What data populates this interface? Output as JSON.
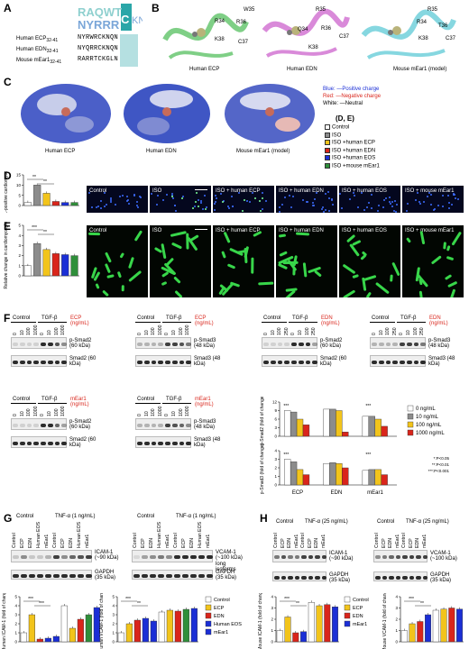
{
  "panels": {
    "A": "A",
    "B": "B",
    "C": "C",
    "D": "D",
    "E": "E",
    "F": "F",
    "G": "G",
    "H": "H",
    "DE": "(D, E)"
  },
  "seq": {
    "ecp": {
      "label": "Human ECP",
      "sub": "32-41",
      "seq": "NYRWRCKNQN"
    },
    "edn": {
      "label": "Human EDN",
      "sub": "32-41",
      "seq": "NYQRRCKNQN"
    },
    "mear": {
      "label": "Mouse mEar1",
      "sub": "32-41",
      "seq": "RARRTCKGLN"
    }
  },
  "B": {
    "ecp": {
      "label": "Human ECP",
      "residues": [
        "W35",
        "R34",
        "R36",
        "K38",
        "C37"
      ]
    },
    "edn": {
      "label": "Human EDN",
      "residues": [
        "R35",
        "Q34",
        "R36",
        "K38",
        "C37"
      ]
    },
    "mear": {
      "label": "Mouse mEar1 (model)",
      "residues": [
        "R35",
        "R34",
        "T36",
        "K38",
        "C37"
      ]
    }
  },
  "C": {
    "ecp": "Human ECP",
    "edn": "Human EDN",
    "mear": "Mouse mEar1 (model)",
    "legend": [
      {
        "k": "Blue:",
        "v": "—Positive charge",
        "color": "#1b2fd6"
      },
      {
        "k": "Red:",
        "v": "—Negative charge",
        "color": "#d9251b"
      },
      {
        "k": "White:",
        "v": "—Neutral",
        "color": "#000000"
      }
    ]
  },
  "DE_legend": [
    {
      "name": "Control",
      "color": "#ffffff"
    },
    {
      "name": "ISO",
      "color": "#8c8c8c"
    },
    {
      "name": "ISO +human ECP",
      "color": "#f2c41b"
    },
    {
      "name": "ISO +human EDN",
      "color": "#d9251b"
    },
    {
      "name": "ISO +human EOS",
      "color": "#1b2fd6"
    },
    {
      "name": "ISO +mouse mEar1",
      "color": "#2f8f3a"
    }
  ],
  "D": {
    "ylabel": "TUNEL-positive cardiomyocytes (%)",
    "ticks": [
      "0",
      "5",
      "10",
      "15"
    ],
    "sig": [
      "**",
      "**"
    ],
    "images": [
      "Control",
      "ISO",
      "ISO + human ECP",
      "ISO + human EDN",
      "ISO + human EOS",
      "ISO + mouse mEar1"
    ]
  },
  "E": {
    "ylabel": "Relative change in cardiomyocyte size",
    "ticks": [
      "0",
      "1",
      "2",
      "3",
      "4",
      "5"
    ],
    "sig": [
      "***",
      "**"
    ],
    "images": [
      "Control",
      "ISO",
      "ISO + human ECP",
      "ISO + human EDN",
      "ISO + human EOS",
      "ISO + mouse mEar1"
    ]
  },
  "chart_data": [
    {
      "type": "bar",
      "categories": [
        "Control",
        "ISO",
        "ISO +human ECP",
        "ISO +human EDN",
        "ISO +human EOS",
        "ISO +mouse mEar1"
      ],
      "values": [
        1.5,
        10,
        6,
        2,
        1.5,
        1.5
      ],
      "ylabel": "TUNEL-positive cardiomyocytes (%)",
      "ylim": [
        0,
        15
      ]
    },
    {
      "type": "bar",
      "categories": [
        "Control",
        "ISO",
        "ISO +human ECP",
        "ISO +human EDN",
        "ISO +human EOS",
        "ISO +mouse mEar1"
      ],
      "values": [
        1,
        3.2,
        2.6,
        2.2,
        2.1,
        2.0
      ],
      "ylabel": "Relative change in cardiomyocyte size",
      "ylim": [
        0,
        5
      ]
    },
    {
      "type": "bar",
      "categories": [
        "ECP",
        "EDN",
        "mEar1"
      ],
      "series": [
        {
          "name": "0 ng/mL",
          "values": [
            9,
            9.5,
            7
          ]
        },
        {
          "name": "10 ng/mL",
          "values": [
            8.5,
            9.5,
            7
          ]
        },
        {
          "name": "100 ng/mL",
          "values": [
            6,
            9,
            6
          ]
        },
        {
          "name": "1000 ng/mL",
          "values": [
            4,
            1.5,
            3.5
          ]
        }
      ],
      "ylabel": "p-Smad2 (fold of change)",
      "ylim": [
        0,
        12
      ],
      "ticks": [
        "0",
        "3",
        "6",
        "9",
        "12"
      ]
    },
    {
      "type": "bar",
      "categories": [
        "ECP",
        "EDN",
        "mEar1"
      ],
      "series": [
        {
          "name": "0 ng/mL",
          "values": [
            3,
            2.5,
            1.7
          ]
        },
        {
          "name": "10 ng/mL",
          "values": [
            2.7,
            2.6,
            1.8
          ]
        },
        {
          "name": "100 ng/mL",
          "values": [
            1.8,
            2.5,
            1.8
          ]
        },
        {
          "name": "1000 ng/mL",
          "values": [
            1.2,
            2.0,
            1.2
          ]
        }
      ],
      "ylabel": "p-Smad3 (fold of change)",
      "ylim": [
        0,
        4
      ],
      "ticks": [
        "0",
        "1",
        "2",
        "3",
        "4"
      ]
    },
    {
      "type": "bar",
      "categories": [
        "Control",
        "ECP",
        "EDN",
        "Human EOS",
        "mEar1",
        "TNF Control",
        "TNF ECP",
        "TNF EDN",
        "TNF Human EOS",
        "TNF mEar1"
      ],
      "values": [
        1,
        3,
        0.3,
        0.4,
        0.6,
        4,
        1.5,
        2.5,
        3,
        3.8
      ],
      "ylabel": "Human ICAM-1 (fold of change)",
      "ylim": [
        0,
        5
      ]
    },
    {
      "type": "bar",
      "categories": [
        "Control",
        "ECP",
        "EDN",
        "Human EOS",
        "mEar1",
        "TNF Control",
        "TNF ECP",
        "TNF EDN",
        "TNF Human EOS",
        "TNF mEar1"
      ],
      "values": [
        1,
        2,
        2.4,
        2.6,
        2.3,
        3.3,
        3.5,
        3.4,
        3.6,
        3.7
      ],
      "ylabel": "Human VCAM-1 (fold of change)",
      "ylim": [
        0,
        5
      ]
    },
    {
      "type": "bar",
      "categories": [
        "Control",
        "ECP",
        "EDN",
        "mEar1",
        "TNF Control",
        "TNF ECP",
        "TNF EDN",
        "TNF mEar1"
      ],
      "values": [
        1,
        2.2,
        0.8,
        0.9,
        3.5,
        3.2,
        3.3,
        3.1
      ],
      "ylabel": "Mouse ICAM-1 (fold of change)",
      "ylim": [
        0,
        4
      ]
    },
    {
      "type": "bar",
      "categories": [
        "Control",
        "ECP",
        "EDN",
        "mEar1",
        "TNF Control",
        "TNF ECP",
        "TNF EDN",
        "TNF mEar1"
      ],
      "values": [
        1,
        1.6,
        1.8,
        2.4,
        2.8,
        2.9,
        3.0,
        2.9
      ],
      "ylabel": "Mouse VCAM-1 (fold of change)",
      "ylim": [
        0,
        4
      ]
    }
  ],
  "F": {
    "control": "Control",
    "tgf": "TGF-β",
    "doses3": [
      "0",
      "10",
      "100",
      "1000"
    ],
    "doses_edn": [
      "0",
      "10",
      "100",
      "250"
    ],
    "ecp_unit": "ECP (ng/mL)",
    "edn_unit": "EDN (ng/mL)",
    "mear_unit": "mEar1 (ng/mL)",
    "psmad2": "p-Smad2 (60 kDa)",
    "smad2": "Smad2 (60 kDa)",
    "psmad3": "p-Smad3 (48 kDa)",
    "smad3": "Smad3 (48 kDa)",
    "xlabels": [
      "ECP",
      "EDN",
      "mEar1"
    ],
    "legend": [
      "0 ng/mL",
      "10 ng/mL",
      "100 ng/mL",
      "1000 ng/mL"
    ],
    "legend_colors": [
      "#ffffff",
      "#8c8c8c",
      "#f2c41b",
      "#d9251b"
    ],
    "pvals": [
      "*:P<0.05",
      "**:P<0.01",
      "***:P<0.001"
    ],
    "ylab_s2": "p-Smad2 (fold of change)",
    "ylab_s3": "p-Smad3 (fold of change)"
  },
  "G": {
    "tnf": "TNF-α (1 ng/mL)",
    "control": "Control",
    "lanes": [
      "Control",
      "ECP",
      "EDN",
      "Human EOS",
      "mEar1",
      "Control",
      "ECP",
      "EDN",
      "Human EOS",
      "mEar1"
    ],
    "icam": "ICAM-1 (~90 kDa)",
    "vcam": "VCAM-1 (~100 kDa) long isoforms",
    "gapdh": "GAPDH (35 kDa)",
    "ylab_icam": "Human ICAM-1 (fold of change)",
    "ylab_vcam": "Human VCAM-1 (fold of change)",
    "legend": [
      {
        "name": "Control",
        "color": "#ffffff"
      },
      {
        "name": "ECP",
        "color": "#f2c41b"
      },
      {
        "name": "EDN",
        "color": "#d9251b"
      },
      {
        "name": "Human EOS",
        "color": "#1b2fd6"
      },
      {
        "name": "mEar1",
        "color": "#1b2fd6"
      }
    ]
  },
  "H": {
    "tnf": "TNF-α (25 ng/mL)",
    "control": "Control",
    "lanes": [
      "Control",
      "ECP",
      "EDN",
      "mEar1",
      "Control",
      "ECP",
      "EDN",
      "mEar1"
    ],
    "icam": "ICAM-1 (~90 kDa)",
    "vcam": "VCAM-1 (~100 kDa)",
    "gapdh": "GAPDH (35 kDa)",
    "ylab_icam": "Mouse ICAM-1 (fold of change)",
    "ylab_vcam": "Mouse VCAM-1 (fold of change)",
    "legend": [
      {
        "name": "Control",
        "color": "#ffffff"
      },
      {
        "name": "ECP",
        "color": "#f2c41b"
      },
      {
        "name": "EDN",
        "color": "#d9251b"
      },
      {
        "name": "mEar1",
        "color": "#1b2fd6"
      }
    ]
  }
}
